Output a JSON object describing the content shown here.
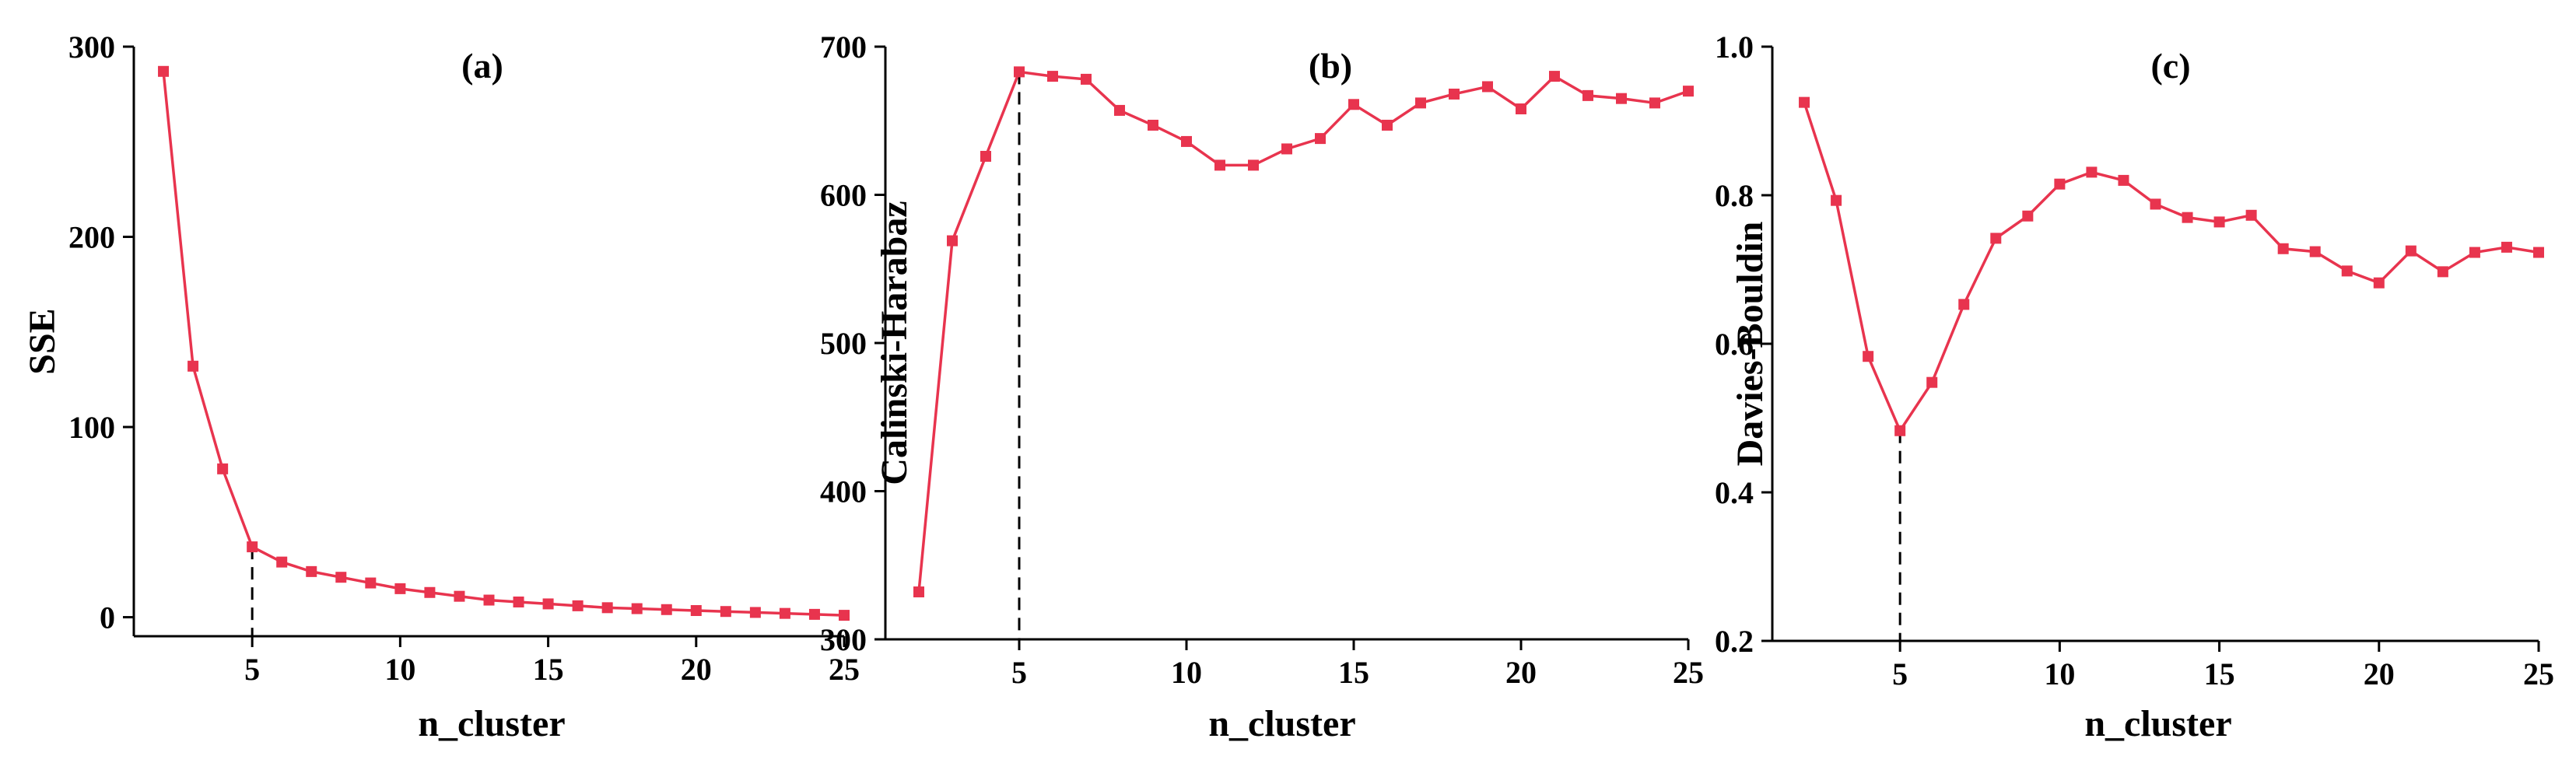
{
  "chart_data": [
    {
      "type": "line",
      "title": "(a)",
      "xlabel": "n_cluster",
      "ylabel": "SSE",
      "xlim": [
        1,
        25
      ],
      "ylim": [
        -10,
        300
      ],
      "xticks": [
        5,
        10,
        15,
        20,
        25
      ],
      "yticks": [
        0,
        100,
        200,
        300
      ],
      "marker_x": 5,
      "color": "#e8344e",
      "x": [
        2,
        3,
        4,
        5,
        6,
        7,
        8,
        9,
        10,
        11,
        12,
        13,
        14,
        15,
        16,
        17,
        18,
        19,
        20,
        21,
        22,
        23,
        24,
        25
      ],
      "values": [
        287,
        132,
        78,
        37,
        29,
        24,
        21,
        18,
        15,
        13,
        11,
        9,
        8,
        7,
        6,
        5,
        4.5,
        4,
        3.5,
        3,
        2.5,
        2,
        1.5,
        1
      ]
    },
    {
      "type": "line",
      "title": "(b)",
      "xlabel": "n_cluster",
      "ylabel": "Calinski-Harabaz",
      "xlim": [
        1,
        25
      ],
      "ylim": [
        300,
        700
      ],
      "xticks": [
        5,
        10,
        15,
        20,
        25
      ],
      "yticks": [
        300,
        400,
        500,
        600,
        700
      ],
      "marker_x": 5,
      "color": "#e8344e",
      "x": [
        2,
        3,
        4,
        5,
        6,
        7,
        8,
        9,
        10,
        11,
        12,
        13,
        14,
        15,
        16,
        17,
        18,
        19,
        20,
        21,
        22,
        23,
        24,
        25
      ],
      "values": [
        332,
        569,
        626,
        683,
        680,
        678,
        657,
        647,
        636,
        620,
        620,
        631,
        638,
        661,
        647,
        662,
        668,
        673,
        658,
        680,
        667,
        665,
        662,
        670
      ]
    },
    {
      "type": "line",
      "title": "(c)",
      "xlabel": "n_cluster",
      "ylabel": "Davies-Bouldin",
      "xlim": [
        1,
        25
      ],
      "ylim": [
        0.2,
        1.0
      ],
      "xticks": [
        5,
        10,
        15,
        20,
        25
      ],
      "yticks": [
        0.2,
        0.4,
        0.6,
        0.8,
        1.0
      ],
      "yticklabels": [
        "0.2",
        "0.4",
        "0.6",
        "0.8",
        "1.0"
      ],
      "marker_x": 5,
      "color": "#e8344e",
      "x": [
        2,
        3,
        4,
        5,
        6,
        7,
        8,
        9,
        10,
        11,
        12,
        13,
        14,
        15,
        16,
        17,
        18,
        19,
        20,
        21,
        22,
        23,
        24,
        25
      ],
      "values": [
        0.925,
        0.793,
        0.583,
        0.483,
        0.548,
        0.653,
        0.742,
        0.772,
        0.815,
        0.831,
        0.82,
        0.788,
        0.77,
        0.764,
        0.773,
        0.728,
        0.724,
        0.698,
        0.682,
        0.725,
        0.697,
        0.723,
        0.73,
        0.723
      ]
    }
  ]
}
